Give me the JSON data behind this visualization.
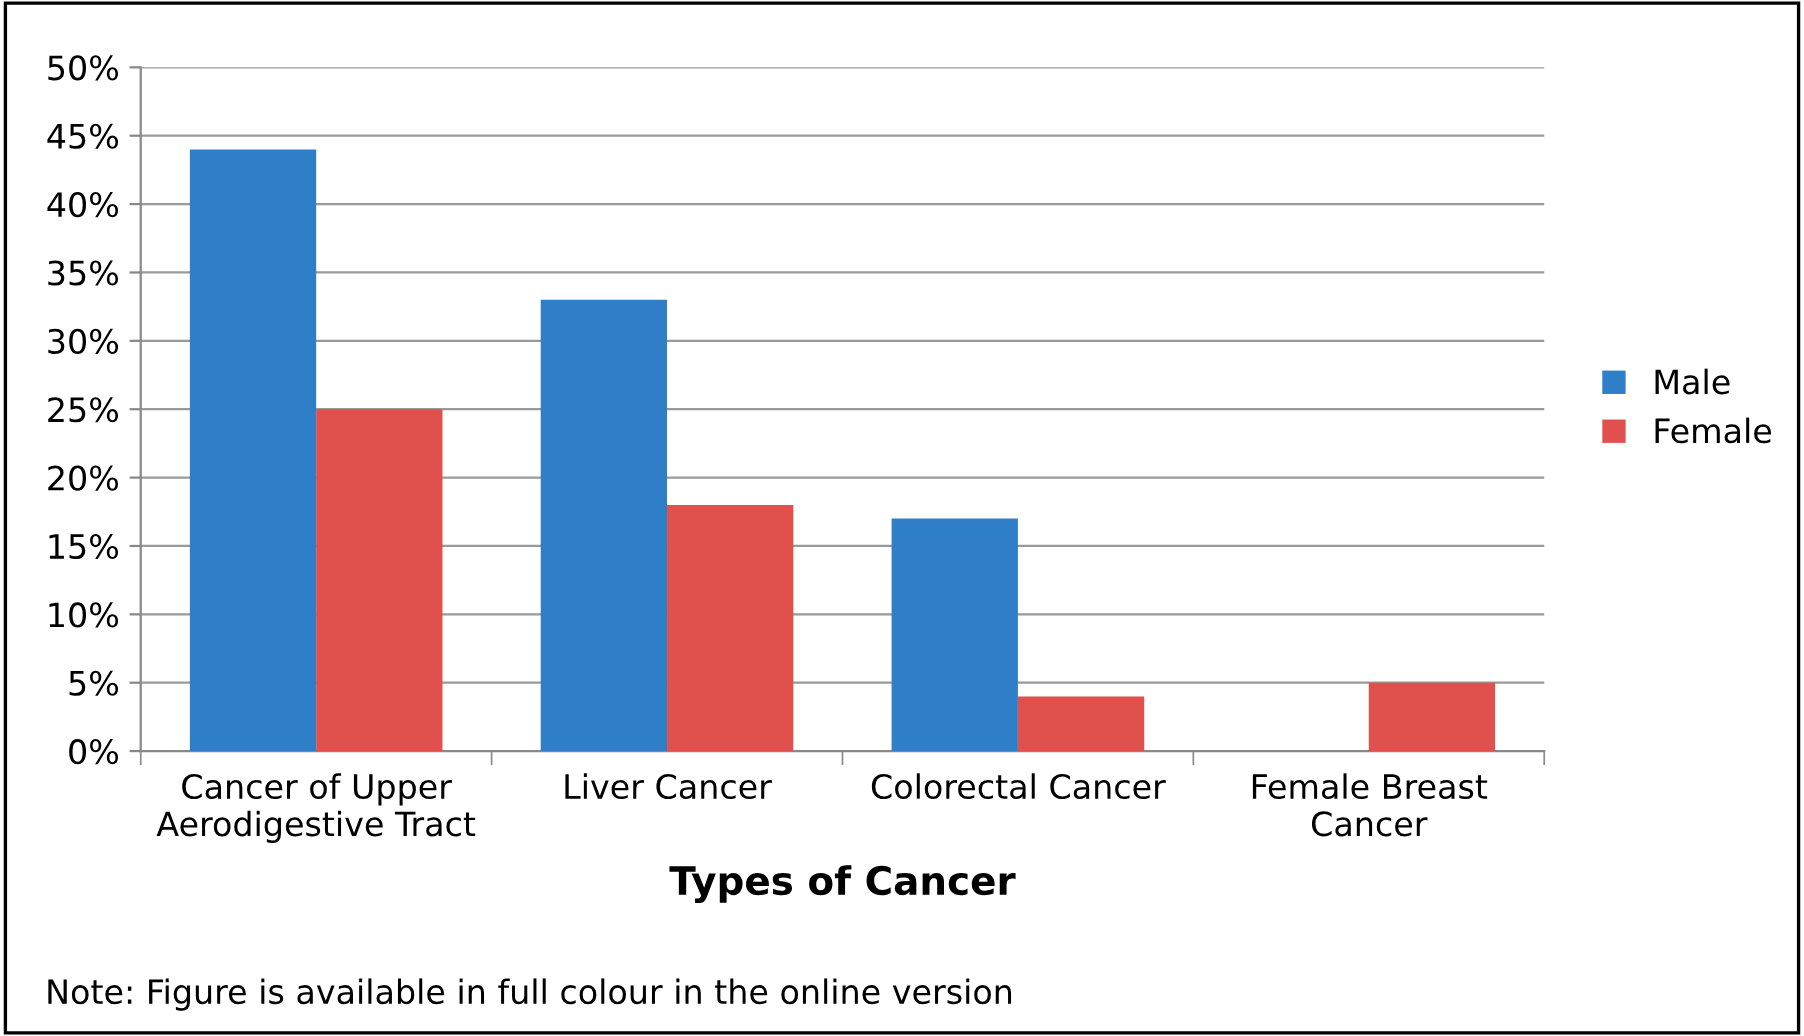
{
  "chart_data": {
    "type": "bar",
    "xlabel": "Types of Cancer",
    "categories": [
      "Cancer of Upper\nAerodigestive Tract",
      "Liver Cancer",
      "Colorectal Cancer",
      "Female Breast\nCancer"
    ],
    "series": [
      {
        "name": "Male",
        "color": "#2f7ec8",
        "values": [
          44,
          33,
          17,
          null
        ]
      },
      {
        "name": "Female",
        "color": "#e0504d",
        "values": [
          25,
          18,
          4,
          5
        ]
      }
    ],
    "ylim": [
      0,
      50
    ],
    "yticks": [
      {
        "value": 0,
        "label": "0%"
      },
      {
        "value": 5,
        "label": "5%"
      },
      {
        "value": 10,
        "label": "10%"
      },
      {
        "value": 15,
        "label": "15%"
      },
      {
        "value": 20,
        "label": "20%"
      },
      {
        "value": 25,
        "label": "25%"
      },
      {
        "value": 30,
        "label": "30%"
      },
      {
        "value": 35,
        "label": "35%"
      },
      {
        "value": 40,
        "label": "40%"
      },
      {
        "value": 45,
        "label": "45%"
      },
      {
        "value": 50,
        "label": "50%"
      }
    ],
    "grid": "y",
    "legend": "right",
    "annotations": [
      "Note: Figure is available in full colour in the online version"
    ]
  }
}
